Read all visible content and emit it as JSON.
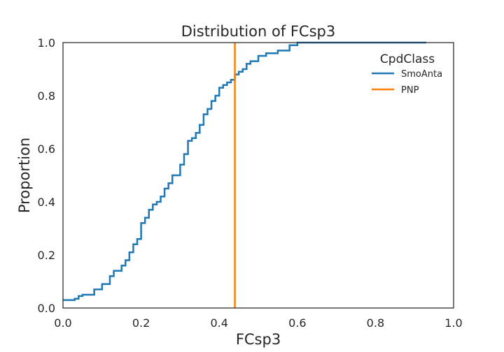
{
  "chart_data": {
    "type": "line",
    "subtype": "ecdf",
    "title": "Distribution of FCsp3",
    "xlabel": "FCsp3",
    "ylabel": "Proportion",
    "xlim": [
      0.0,
      1.0
    ],
    "ylim": [
      0.0,
      1.0
    ],
    "x_ticks": [
      "0.0",
      "0.2",
      "0.4",
      "0.6",
      "0.8",
      "1.0"
    ],
    "y_ticks": [
      "0.0",
      "0.2",
      "0.4",
      "0.6",
      "0.8",
      "1.0"
    ],
    "grid": false,
    "legend": {
      "title": "CpdClass",
      "placement": "top-right",
      "entries": [
        "SmoAnta",
        "PNP"
      ]
    },
    "series": [
      {
        "name": "SmoAnta",
        "color": "#1f77b4",
        "x": [
          0.0,
          0.03,
          0.04,
          0.05,
          0.08,
          0.1,
          0.12,
          0.13,
          0.15,
          0.16,
          0.17,
          0.18,
          0.19,
          0.2,
          0.21,
          0.22,
          0.23,
          0.24,
          0.25,
          0.26,
          0.27,
          0.28,
          0.3,
          0.31,
          0.32,
          0.33,
          0.34,
          0.35,
          0.36,
          0.37,
          0.38,
          0.39,
          0.4,
          0.41,
          0.42,
          0.43,
          0.44,
          0.45,
          0.46,
          0.47,
          0.48,
          0.5,
          0.52,
          0.55,
          0.58,
          0.6,
          0.93
        ],
        "y": [
          0.03,
          0.035,
          0.045,
          0.05,
          0.07,
          0.09,
          0.12,
          0.14,
          0.16,
          0.18,
          0.21,
          0.24,
          0.26,
          0.32,
          0.34,
          0.37,
          0.39,
          0.4,
          0.42,
          0.45,
          0.47,
          0.5,
          0.54,
          0.58,
          0.63,
          0.64,
          0.66,
          0.69,
          0.73,
          0.75,
          0.78,
          0.8,
          0.83,
          0.84,
          0.85,
          0.86,
          0.88,
          0.89,
          0.9,
          0.92,
          0.93,
          0.95,
          0.96,
          0.97,
          0.99,
          1.0,
          1.0
        ]
      },
      {
        "name": "PNP",
        "color": "#ff7f0e",
        "x": [
          0.44,
          0.44
        ],
        "y": [
          0.0,
          1.0
        ]
      }
    ]
  }
}
